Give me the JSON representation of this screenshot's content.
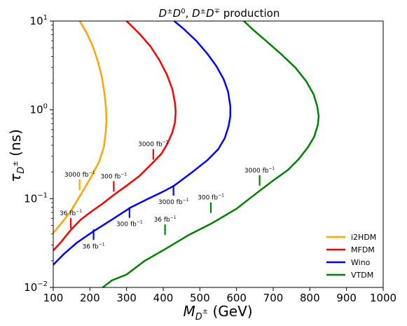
{
  "chart_data": {
    "type": "line",
    "title": "D±D0, D±D∓ production",
    "xlabel": "M_D± (GeV)",
    "ylabel": "τ_D± (ns)",
    "xlim": [
      100,
      1000
    ],
    "ylim": [
      0.01,
      10
    ],
    "yscale": "log",
    "grid": false,
    "legend_position": "bottom-right",
    "x_ticks": [
      "100",
      "200",
      "300",
      "400",
      "500",
      "600",
      "700",
      "800",
      "900",
      "1000"
    ],
    "y_ticks": [
      {
        "value": 0.01,
        "base": "10",
        "exp": "−2"
      },
      {
        "value": 0.1,
        "base": "10",
        "exp": "−1"
      },
      {
        "value": 1,
        "base": "10",
        "exp": "0"
      },
      {
        "value": 10,
        "base": "10",
        "exp": "1"
      }
    ],
    "series": [
      {
        "name": "i2HDM",
        "color": "#FFA500",
        "points": [
          [
            100,
            0.041
          ],
          [
            112,
            0.047
          ],
          [
            130,
            0.058
          ],
          [
            150,
            0.075
          ],
          [
            165,
            0.095
          ],
          [
            185,
            0.13
          ],
          [
            205,
            0.18
          ],
          [
            225,
            0.26
          ],
          [
            238,
            0.38
          ],
          [
            243,
            0.55
          ],
          [
            245,
            0.75
          ],
          [
            244,
            1.0
          ],
          [
            240,
            1.5
          ],
          [
            233,
            2.3
          ],
          [
            222,
            3.5
          ],
          [
            208,
            5.2
          ],
          [
            190,
            7.5
          ],
          [
            172,
            10.0
          ]
        ]
      },
      {
        "name": "MFDM",
        "color": "#FF0000",
        "points": [
          [
            100,
            0.026
          ],
          [
            120,
            0.032
          ],
          [
            145,
            0.043
          ],
          [
            175,
            0.058
          ],
          [
            205,
            0.072
          ],
          [
            235,
            0.088
          ],
          [
            265,
            0.11
          ],
          [
            300,
            0.14
          ],
          [
            335,
            0.18
          ],
          [
            370,
            0.25
          ],
          [
            395,
            0.32
          ],
          [
            412,
            0.42
          ],
          [
            425,
            0.56
          ],
          [
            432,
            0.72
          ],
          [
            434,
            0.95
          ],
          [
            432,
            1.2
          ],
          [
            425,
            1.7
          ],
          [
            410,
            2.5
          ],
          [
            390,
            3.6
          ],
          [
            365,
            5.2
          ],
          [
            335,
            7.2
          ],
          [
            300,
            10.0
          ]
        ]
      },
      {
        "name": "Wino",
        "color": "#0000FF",
        "points": [
          [
            100,
            0.018
          ],
          [
            130,
            0.024
          ],
          [
            165,
            0.032
          ],
          [
            210,
            0.043
          ],
          [
            260,
            0.058
          ],
          [
            310,
            0.079
          ],
          [
            360,
            0.1
          ],
          [
            400,
            0.12
          ],
          [
            430,
            0.14
          ],
          [
            480,
            0.2
          ],
          [
            520,
            0.27
          ],
          [
            550,
            0.36
          ],
          [
            568,
            0.48
          ],
          [
            578,
            0.65
          ],
          [
            583,
            0.85
          ],
          [
            583,
            1.1
          ],
          [
            577,
            1.6
          ],
          [
            565,
            2.2
          ],
          [
            545,
            3.1
          ],
          [
            520,
            4.3
          ],
          [
            490,
            6.0
          ],
          [
            455,
            8.2
          ],
          [
            430,
            10.0
          ]
        ]
      },
      {
        "name": "VTDM",
        "color": "#008000",
        "points": [
          [
            235,
            0.01
          ],
          [
            260,
            0.012
          ],
          [
            300,
            0.014
          ],
          [
            350,
            0.02
          ],
          [
            405,
            0.027
          ],
          [
            470,
            0.039
          ],
          [
            530,
            0.052
          ],
          [
            600,
            0.077
          ],
          [
            660,
            0.12
          ],
          [
            700,
            0.16
          ],
          [
            740,
            0.21
          ],
          [
            770,
            0.28
          ],
          [
            795,
            0.38
          ],
          [
            812,
            0.5
          ],
          [
            822,
            0.68
          ],
          [
            824,
            0.85
          ],
          [
            820,
            1.1
          ],
          [
            810,
            1.5
          ],
          [
            790,
            2.1
          ],
          [
            760,
            3.0
          ],
          [
            720,
            4.3
          ],
          [
            680,
            6.0
          ],
          [
            645,
            8.0
          ],
          [
            620,
            10.0
          ]
        ]
      }
    ],
    "annotations": [
      {
        "series": "i2HDM",
        "x": 172,
        "y": 0.125,
        "label_base": "3000 fb",
        "label_exp": "−1",
        "side": "above"
      },
      {
        "series": "MFDM",
        "x": 148,
        "y": 0.046,
        "label_base": "36 fb",
        "label_exp": "−1",
        "side": "above"
      },
      {
        "series": "MFDM",
        "x": 265,
        "y": 0.12,
        "label_base": "300 fb",
        "label_exp": "−1",
        "side": "above"
      },
      {
        "series": "MFDM",
        "x": 373,
        "y": 0.275,
        "label_base": "3000 fb",
        "label_exp": "−1",
        "side": "above"
      },
      {
        "series": "Wino",
        "x": 210,
        "y": 0.045,
        "label_base": "36 fb",
        "label_exp": "−1",
        "side": "below"
      },
      {
        "series": "Wino",
        "x": 308,
        "y": 0.08,
        "label_base": "300 fb",
        "label_exp": "−1",
        "side": "below"
      },
      {
        "series": "Wino",
        "x": 428,
        "y": 0.142,
        "label_base": "3000 fb",
        "label_exp": "−1",
        "side": "below"
      },
      {
        "series": "VTDM",
        "x": 405,
        "y": 0.039,
        "label_base": "36 fb",
        "label_exp": "−1",
        "side": "above"
      },
      {
        "series": "VTDM",
        "x": 530,
        "y": 0.069,
        "label_base": "300 fb",
        "label_exp": "−1",
        "side": "above"
      },
      {
        "series": "VTDM",
        "x": 663,
        "y": 0.14,
        "label_base": "3000 fb",
        "label_exp": "−1",
        "side": "above"
      }
    ]
  }
}
